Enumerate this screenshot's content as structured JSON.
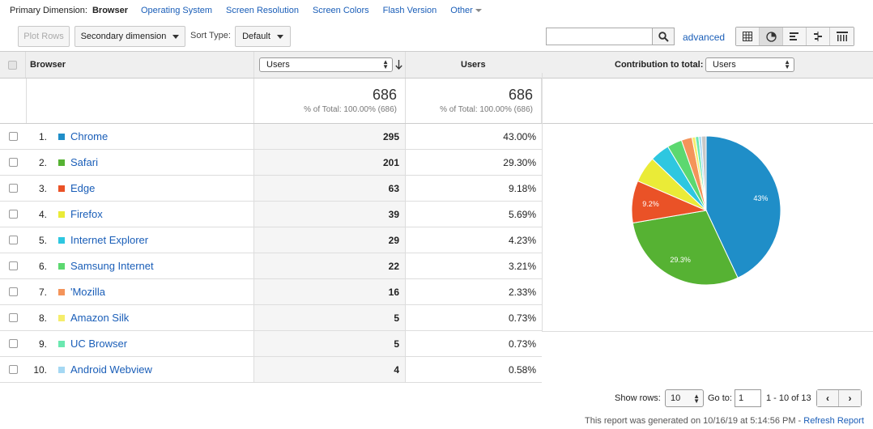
{
  "dimension_bar": {
    "label": "Primary Dimension:",
    "current": "Browser",
    "links": [
      "Operating System",
      "Screen Resolution",
      "Screen Colors",
      "Flash Version"
    ],
    "other": "Other"
  },
  "toolbar": {
    "plot_rows": "Plot Rows",
    "secondary_dimension": "Secondary dimension",
    "sort_type_label": "Sort Type:",
    "sort_type_value": "Default",
    "search_placeholder": "",
    "advanced": "advanced"
  },
  "table": {
    "headers": {
      "browser": "Browser",
      "metric_select": "Users",
      "users": "Users",
      "contribution_label": "Contribution to total:",
      "contribution_select": "Users"
    },
    "totals": {
      "users_select_total": "686",
      "users_select_sub": "% of Total: 100.00% (686)",
      "users_total": "686",
      "users_sub": "% of Total: 100.00% (686)"
    },
    "rows": [
      {
        "num": "1.",
        "name": "Chrome",
        "users": "295",
        "pct": "43.00%",
        "color": "#1f8ec8"
      },
      {
        "num": "2.",
        "name": "Safari",
        "users": "201",
        "pct": "29.30%",
        "color": "#56b233"
      },
      {
        "num": "3.",
        "name": "Edge",
        "users": "63",
        "pct": "9.18%",
        "color": "#ea5227"
      },
      {
        "num": "4.",
        "name": "Firefox",
        "users": "39",
        "pct": "5.69%",
        "color": "#eaeb37"
      },
      {
        "num": "5.",
        "name": "Internet Explorer",
        "users": "29",
        "pct": "4.23%",
        "color": "#2ec7e0"
      },
      {
        "num": "6.",
        "name": "Samsung Internet",
        "users": "22",
        "pct": "3.21%",
        "color": "#5cd870"
      },
      {
        "num": "7.",
        "name": "'Mozilla",
        "users": "16",
        "pct": "2.33%",
        "color": "#f4945a"
      },
      {
        "num": "8.",
        "name": "Amazon Silk",
        "users": "5",
        "pct": "0.73%",
        "color": "#f5ed6b"
      },
      {
        "num": "9.",
        "name": "UC Browser",
        "users": "5",
        "pct": "0.73%",
        "color": "#6be8b0"
      },
      {
        "num": "10.",
        "name": "Android Webview",
        "users": "4",
        "pct": "0.58%",
        "color": "#a5d8f3"
      }
    ]
  },
  "chart_data": {
    "type": "pie",
    "categories": [
      "Chrome",
      "Safari",
      "Edge",
      "Firefox",
      "Internet Explorer",
      "Samsung Internet",
      "'Mozilla",
      "Amazon Silk",
      "UC Browser",
      "Android Webview",
      "Other"
    ],
    "values": [
      43.0,
      29.3,
      9.18,
      5.69,
      4.23,
      3.21,
      2.33,
      0.73,
      0.73,
      0.58,
      1.02
    ],
    "colors": [
      "#1f8ec8",
      "#56b233",
      "#ea5227",
      "#eaeb37",
      "#2ec7e0",
      "#5cd870",
      "#f4945a",
      "#f5ed6b",
      "#6be8b0",
      "#a5d8f3",
      "#c8c8c8"
    ],
    "slice_labels": [
      "43%",
      "29.3%",
      "9.2%",
      "",
      "",
      "",
      "",
      "",
      "",
      "",
      ""
    ]
  },
  "footer": {
    "show_rows_label": "Show rows:",
    "show_rows_value": "10",
    "goto_label": "Go to:",
    "goto_value": "1",
    "range": "1 - 10 of 13",
    "generated": "This report was generated on 10/16/19 at 5:14:56 PM - ",
    "refresh": "Refresh Report"
  }
}
